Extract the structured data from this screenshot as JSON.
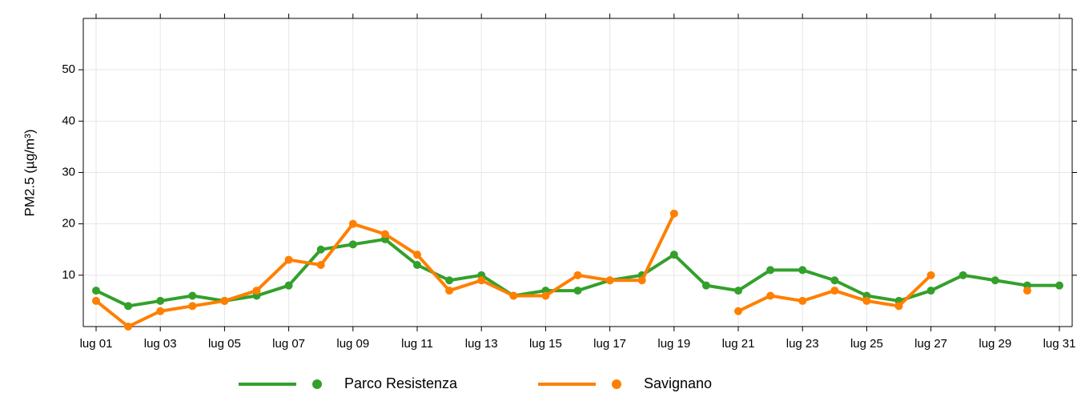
{
  "chart_data": {
    "type": "line",
    "y_label": "PM2.5 (µg/m³)",
    "categories": [
      "lug 01",
      null,
      "lug 03",
      null,
      "lug 05",
      null,
      "lug 07",
      null,
      "lug 09",
      null,
      "lug 11",
      null,
      "lug 13",
      null,
      "lug 15",
      null,
      "lug 17",
      null,
      "lug 19",
      null,
      "lug 21",
      null,
      "lug 23",
      null,
      "lug 25",
      null,
      "lug 27",
      null,
      "lug 29",
      null,
      "lug 31"
    ],
    "series": [
      {
        "name": "Parco Resistenza",
        "color": "#33a02c",
        "values": [
          7,
          4,
          5,
          6,
          5,
          6,
          8,
          15,
          16,
          17,
          12,
          9,
          10,
          6,
          7,
          7,
          9,
          10,
          14,
          8,
          7,
          11,
          11,
          9,
          6,
          5,
          7,
          10,
          9,
          8,
          8
        ]
      },
      {
        "name": "Savignano",
        "color": "#ff7f00",
        "values": [
          5,
          0,
          3,
          4,
          5,
          7,
          13,
          12,
          20,
          18,
          14,
          7,
          9,
          6,
          6,
          10,
          9,
          9,
          22,
          null,
          3,
          6,
          5,
          7,
          5,
          4,
          10,
          null,
          null,
          7,
          null
        ]
      }
    ],
    "ylim": [
      0,
      60
    ],
    "yticks": [
      10,
      20,
      30,
      40,
      50
    ],
    "grid": true
  }
}
